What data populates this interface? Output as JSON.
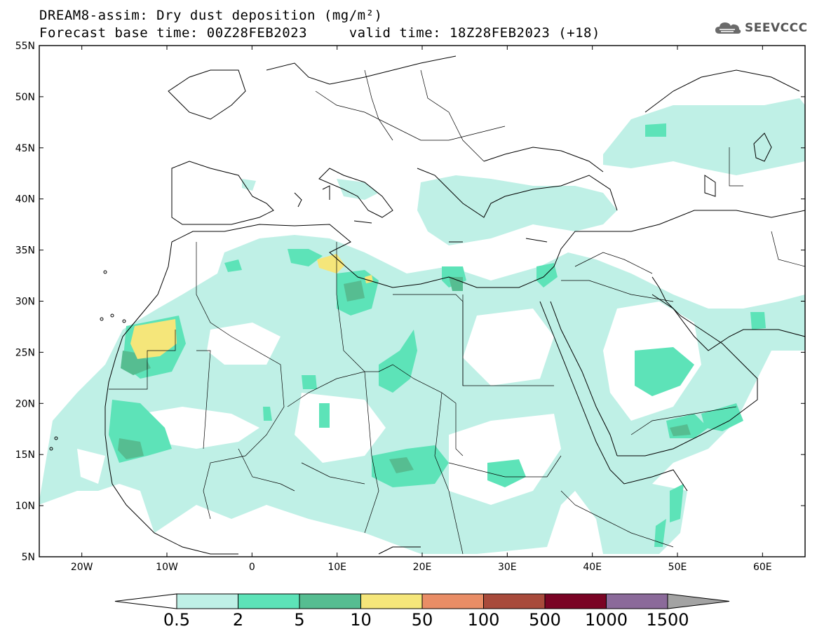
{
  "title": {
    "line1": "DREAM8-assim: Dry dust deposition (mg/m²)",
    "line2": "Forecast base time: 00Z28FEB2023     valid time: 18Z28FEB2023 (+18)"
  },
  "logo": {
    "text": "SEEVCCC",
    "icon": "cloud-icon"
  },
  "axes": {
    "lat_ticks": [
      "55N",
      "50N",
      "45N",
      "40N",
      "35N",
      "30N",
      "25N",
      "20N",
      "15N",
      "10N",
      "5N"
    ],
    "lon_ticks": [
      "20W",
      "10W",
      "0",
      "10E",
      "20E",
      "30E",
      "40E",
      "50E",
      "60E"
    ],
    "lat_range": [
      5,
      55
    ],
    "lon_range": [
      -25,
      65
    ]
  },
  "colorbar": {
    "labels": [
      "0.5",
      "2",
      "5",
      "10",
      "50",
      "100",
      "500",
      "1000",
      "1500"
    ],
    "colors": [
      "#bff0e6",
      "#5de3b8",
      "#56bd91",
      "#f5e67a",
      "#e98d66",
      "#a84a3b",
      "#7a0425",
      "#8b6a9a"
    ],
    "under_color": "#ffffff",
    "over_color": "#a3a3a3"
  }
}
